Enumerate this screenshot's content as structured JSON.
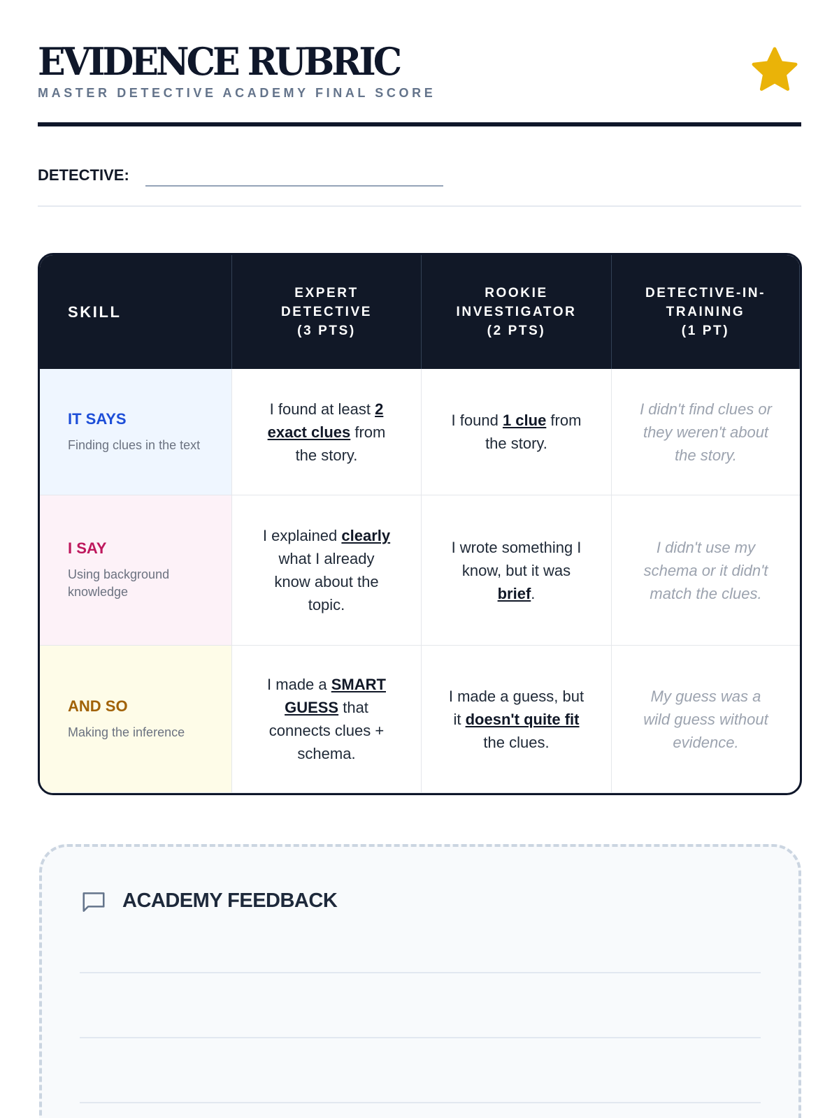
{
  "header": {
    "title": "EVIDENCE RUBRIC",
    "subtitle": "MASTER DETECTIVE ACADEMY FINAL SCORE",
    "star_icon": "star-icon",
    "star_color": "#eab308"
  },
  "detective": {
    "label": "DETECTIVE:",
    "value": ""
  },
  "table": {
    "headers": [
      "SKILL",
      "EXPERT\nDETECTIVE\n(3 PTS)",
      "ROOKIE\nINVESTIGATOR\n(2 PTS)",
      "DETECTIVE-IN-\nTRAINING\n(1 PT)"
    ],
    "rows": [
      {
        "skill": "IT SAYS",
        "desc": "Finding clues in the text",
        "color": "#1d4ed8",
        "bg": "#eff6ff",
        "cells": [
          [
            {
              "t": "I found at least "
            },
            {
              "t": "2 exact clues",
              "b": true
            },
            {
              "t": " from the story."
            }
          ],
          [
            {
              "t": "I found "
            },
            {
              "t": "1 clue",
              "b": true
            },
            {
              "t": " from the story."
            }
          ],
          [
            {
              "t": "I didn't find clues or they weren't about the story."
            }
          ]
        ]
      },
      {
        "skill": "I SAY",
        "desc": "Using background knowledge",
        "color": "#be185d",
        "bg": "#fdf2f8",
        "cells": [
          [
            {
              "t": "I explained "
            },
            {
              "t": "clearly",
              "b": true
            },
            {
              "t": " what I already know about the topic."
            }
          ],
          [
            {
              "t": "I wrote something I know, but it was "
            },
            {
              "t": "brief",
              "b": true
            },
            {
              "t": "."
            }
          ],
          [
            {
              "t": "I didn't use my schema or it didn't match the clues."
            }
          ]
        ]
      },
      {
        "skill": "AND SO",
        "desc": "Making the inference",
        "color": "#a16207",
        "bg": "#fefce8",
        "cells": [
          [
            {
              "t": "I made a "
            },
            {
              "t": "SMART GUESS",
              "b": true
            },
            {
              "t": " that connects clues + schema."
            }
          ],
          [
            {
              "t": "I made a guess, but it "
            },
            {
              "t": "doesn't quite fit",
              "b": true
            },
            {
              "t": " the clues."
            }
          ],
          [
            {
              "t": "My guess was a wild guess without evidence."
            }
          ]
        ]
      }
    ]
  },
  "feedback": {
    "title": "ACADEMY FEEDBACK",
    "icon": "message-square-icon"
  }
}
